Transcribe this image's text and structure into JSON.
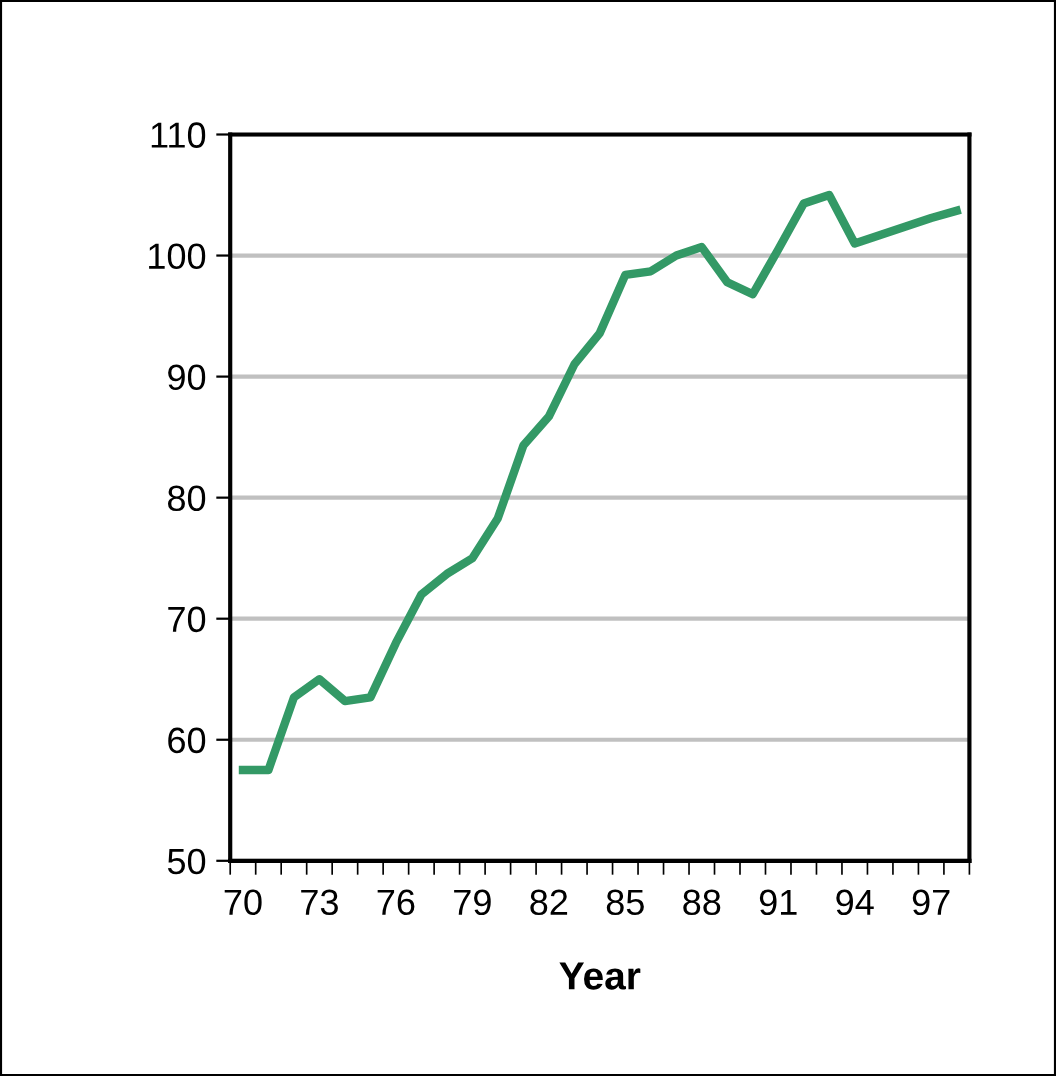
{
  "chart_data": {
    "type": "line",
    "xlabel": "Year",
    "categories": [
      "70",
      null,
      null,
      "73",
      null,
      null,
      "76",
      null,
      null,
      "79",
      null,
      null,
      "82",
      null,
      null,
      "85",
      null,
      null,
      "88",
      null,
      null,
      "91",
      null,
      null,
      "94",
      null,
      null,
      "97",
      null
    ],
    "series": [
      {
        "color": "#339966",
        "values": [
          57.5,
          57.5,
          63.5,
          65,
          63.2,
          63.5,
          68,
          72,
          73.7,
          75,
          78.3,
          84.3,
          86.7,
          91,
          93.6,
          98.4,
          98.7,
          100,
          100.7,
          97.8,
          96.8,
          100.5,
          104.3,
          105,
          101,
          101.7,
          102.4,
          103.1,
          103.7
        ]
      }
    ],
    "ylim": [
      50,
      110
    ],
    "yticks": [
      50,
      60,
      70,
      80,
      90,
      100,
      110
    ],
    "grid": "y",
    "marker": "none",
    "line_style": "solid"
  }
}
